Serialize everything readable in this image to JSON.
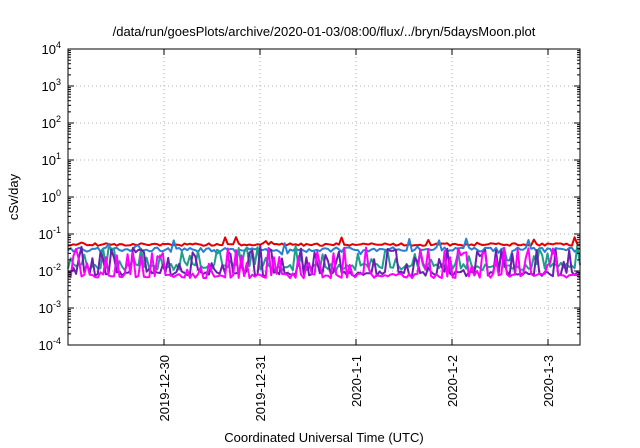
{
  "chart_data": {
    "type": "line",
    "title": "/data/run/goesPlots/archive/2020-01-03/08:00/flux/../bryn/5daysMoon.plot",
    "xlabel": "Coordinated Universal Time (UTC)",
    "ylabel": "cSv/day",
    "yscale": "log",
    "ylim": [
      0.0001,
      10000
    ],
    "y_ticks": [
      {
        "base": "10",
        "exp": "-4",
        "value": 0.0001
      },
      {
        "base": "10",
        "exp": "-3",
        "value": 0.001
      },
      {
        "base": "10",
        "exp": "-2",
        "value": 0.01
      },
      {
        "base": "10",
        "exp": "-1",
        "value": 0.1
      },
      {
        "base": "10",
        "exp": "0",
        "value": 1
      },
      {
        "base": "10",
        "exp": "1",
        "value": 10
      },
      {
        "base": "10",
        "exp": "2",
        "value": 100
      },
      {
        "base": "10",
        "exp": "3",
        "value": 1000
      },
      {
        "base": "10",
        "exp": "4",
        "value": 10000
      }
    ],
    "xlim": [
      "2019-12-29T00:00",
      "2020-01-03T08:00"
    ],
    "x_ticks": [
      {
        "label": "2019-12-30",
        "value": "2019-12-30T00:00"
      },
      {
        "label": "2019-12-31",
        "value": "2019-12-31T00:00"
      },
      {
        "label": "2020-1-1",
        "value": "2020-01-01T00:00"
      },
      {
        "label": "2020-1-2",
        "value": "2020-01-02T00:00"
      },
      {
        "label": "2020-1-3",
        "value": "2020-01-03T00:00"
      }
    ],
    "grid": true,
    "series": [
      {
        "color": "#e00000",
        "base": 0.052,
        "spread": 0.08,
        "spike_prob": 0.05,
        "spike_mult": 1.6,
        "dip_prob": 0.0,
        "dip_min": 1.0
      },
      {
        "color": "#2a7fd0",
        "base": 0.038,
        "spread": 0.14,
        "spike_prob": 0.06,
        "spike_mult": 1.8,
        "dip_prob": 0.08,
        "dip_min": 0.45
      },
      {
        "color": "#1f9f8a",
        "base": 0.013,
        "spread": 0.2,
        "spike_prob": 0.3,
        "spike_mult": 3.5,
        "dip_prob": 0.0,
        "dip_min": 1.0
      },
      {
        "color": "#6a1fb0",
        "base": 0.0085,
        "spread": 0.15,
        "spike_prob": 0.32,
        "spike_mult": 5.0,
        "dip_prob": 0.0,
        "dip_min": 1.0
      },
      {
        "color": "#ff00ff",
        "base": 0.0075,
        "spread": 0.15,
        "spike_prob": 0.34,
        "spike_mult": 5.5,
        "dip_prob": 0.0,
        "dip_min": 1.0
      }
    ]
  }
}
